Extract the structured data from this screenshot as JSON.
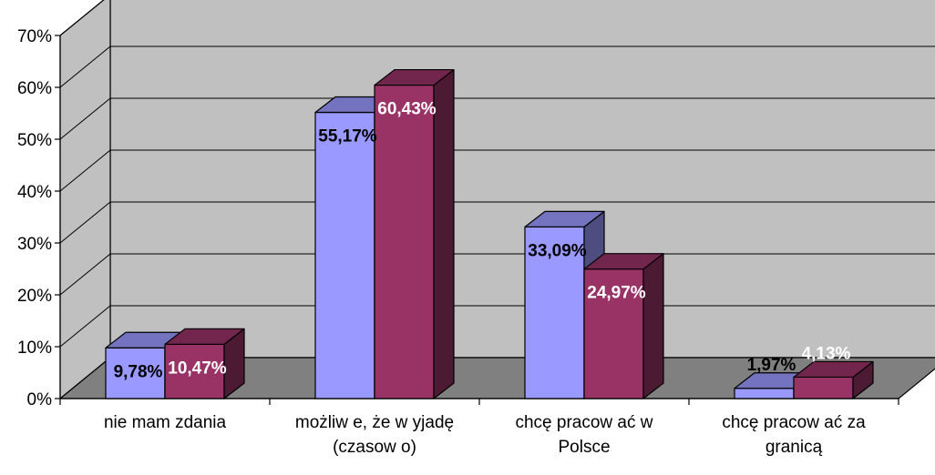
{
  "chart_data": {
    "type": "bar",
    "categories": [
      [
        "nie mam zdania"
      ],
      [
        "możliw e, że w yjadę",
        "(czasow o)"
      ],
      [
        "chcę pracow ać w",
        "Polsce"
      ],
      [
        "chcę pracow ać za",
        "granicą"
      ]
    ],
    "series": [
      {
        "values": [
          9.78,
          55.17,
          33.09,
          1.97
        ],
        "labels": [
          "9,78%",
          "55,17%",
          "33,09%",
          "1,97%"
        ],
        "color": "#9999ff",
        "label_color": "#000000"
      },
      {
        "values": [
          10.47,
          60.43,
          24.97,
          4.13
        ],
        "labels": [
          "10,47%",
          "60,43%",
          "24,97%",
          "4,13%"
        ],
        "color": "#993366",
        "label_color": "#ffffff"
      }
    ],
    "yticks": [
      "0%",
      "10%",
      "20%",
      "30%",
      "40%",
      "50%",
      "60%",
      "70%"
    ],
    "ylim": [
      0,
      70
    ],
    "grid": true,
    "three_d": true,
    "legend": "none",
    "colors": {
      "wall": "#c0c0c0",
      "floor": "#808080",
      "gridline": "#000000"
    }
  }
}
